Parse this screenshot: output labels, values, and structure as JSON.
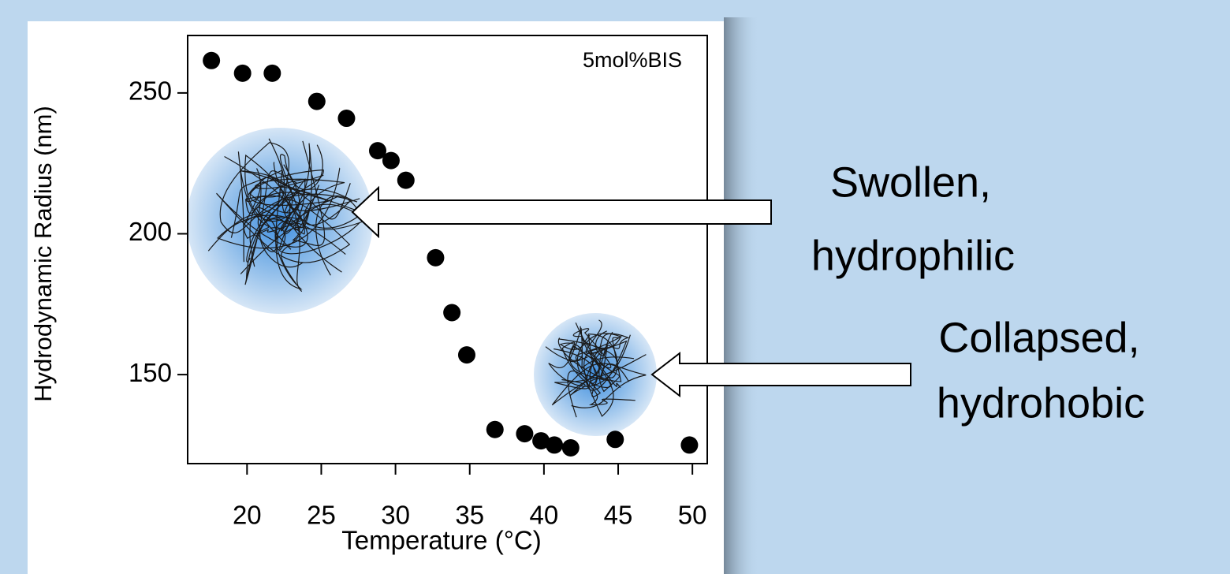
{
  "chart_data": {
    "type": "scatter",
    "x_label": "Temperature (°C)",
    "y_label": "Hydrodynamic Radius (nm)",
    "annotation": "5mol%BIS",
    "x": [
      17.6,
      19.7,
      21.7,
      24.7,
      26.7,
      28.8,
      29.7,
      30.7,
      32.7,
      33.8,
      34.8,
      36.7,
      38.7,
      39.8,
      40.7,
      41.8,
      44.8,
      49.8
    ],
    "values": [
      261.5,
      257,
      257,
      247,
      241,
      229.5,
      226,
      219,
      191.5,
      172,
      157,
      130.5,
      129,
      126.5,
      125,
      124,
      127,
      125
    ],
    "color": "#000000",
    "xlim": [
      16,
      51
    ],
    "xticks": [
      20,
      25,
      30,
      35,
      40,
      45,
      50
    ],
    "ylim": [
      118.4,
      270.4
    ],
    "yticks": [
      150,
      200,
      250
    ]
  },
  "labels": [
    {
      "lines": [
        "Swollen,",
        "hydrophilic"
      ]
    },
    {
      "lines": [
        "Collapsed,",
        "hydrohobic"
      ]
    }
  ]
}
